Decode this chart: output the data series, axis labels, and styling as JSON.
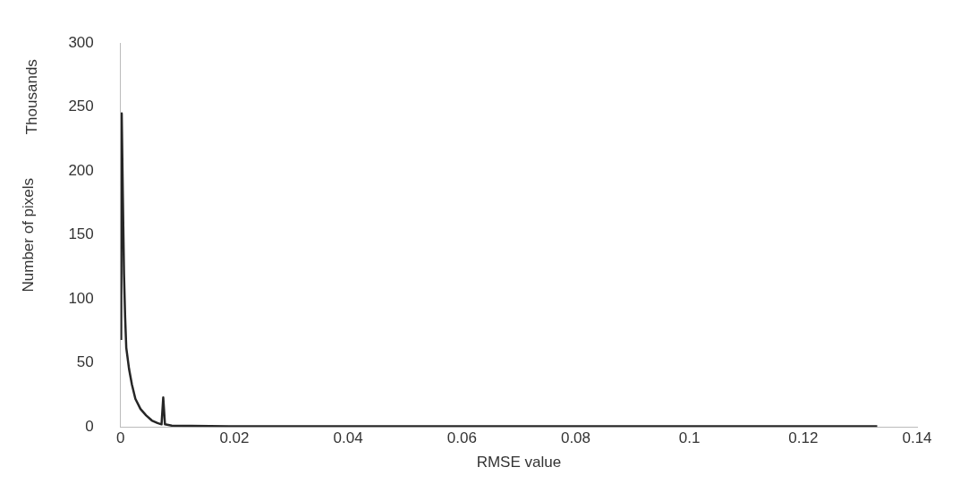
{
  "chart_data": {
    "type": "line",
    "xlabel": "RMSE value",
    "ylabel": "Number of pixels",
    "annotations": [
      "Thousands"
    ],
    "x": [
      0.0001,
      0.0002,
      0.0004,
      0.0006,
      0.0008,
      0.001,
      0.0015,
      0.002,
      0.0026,
      0.0035,
      0.0045,
      0.0055,
      0.0065,
      0.0072,
      0.0075,
      0.0078,
      0.009,
      0.02,
      0.133
    ],
    "series": [
      {
        "color": "#262626",
        "values": [
          68,
          245,
          180,
          120,
          86,
          62,
          45,
          33,
          22,
          14,
          9,
          5,
          3,
          2,
          23,
          2,
          1,
          0.5,
          0.5
        ]
      }
    ],
    "xlim": [
      0,
      0.14
    ],
    "xticks": [
      0,
      0.02,
      0.04,
      0.06,
      0.08,
      0.1,
      0.12,
      0.14
    ],
    "ylim": [
      0,
      300
    ],
    "yticks": [
      0,
      50,
      100,
      150,
      200,
      250,
      300
    ],
    "grid": false,
    "legend": false,
    "marker": "none",
    "line_style": "solid"
  }
}
